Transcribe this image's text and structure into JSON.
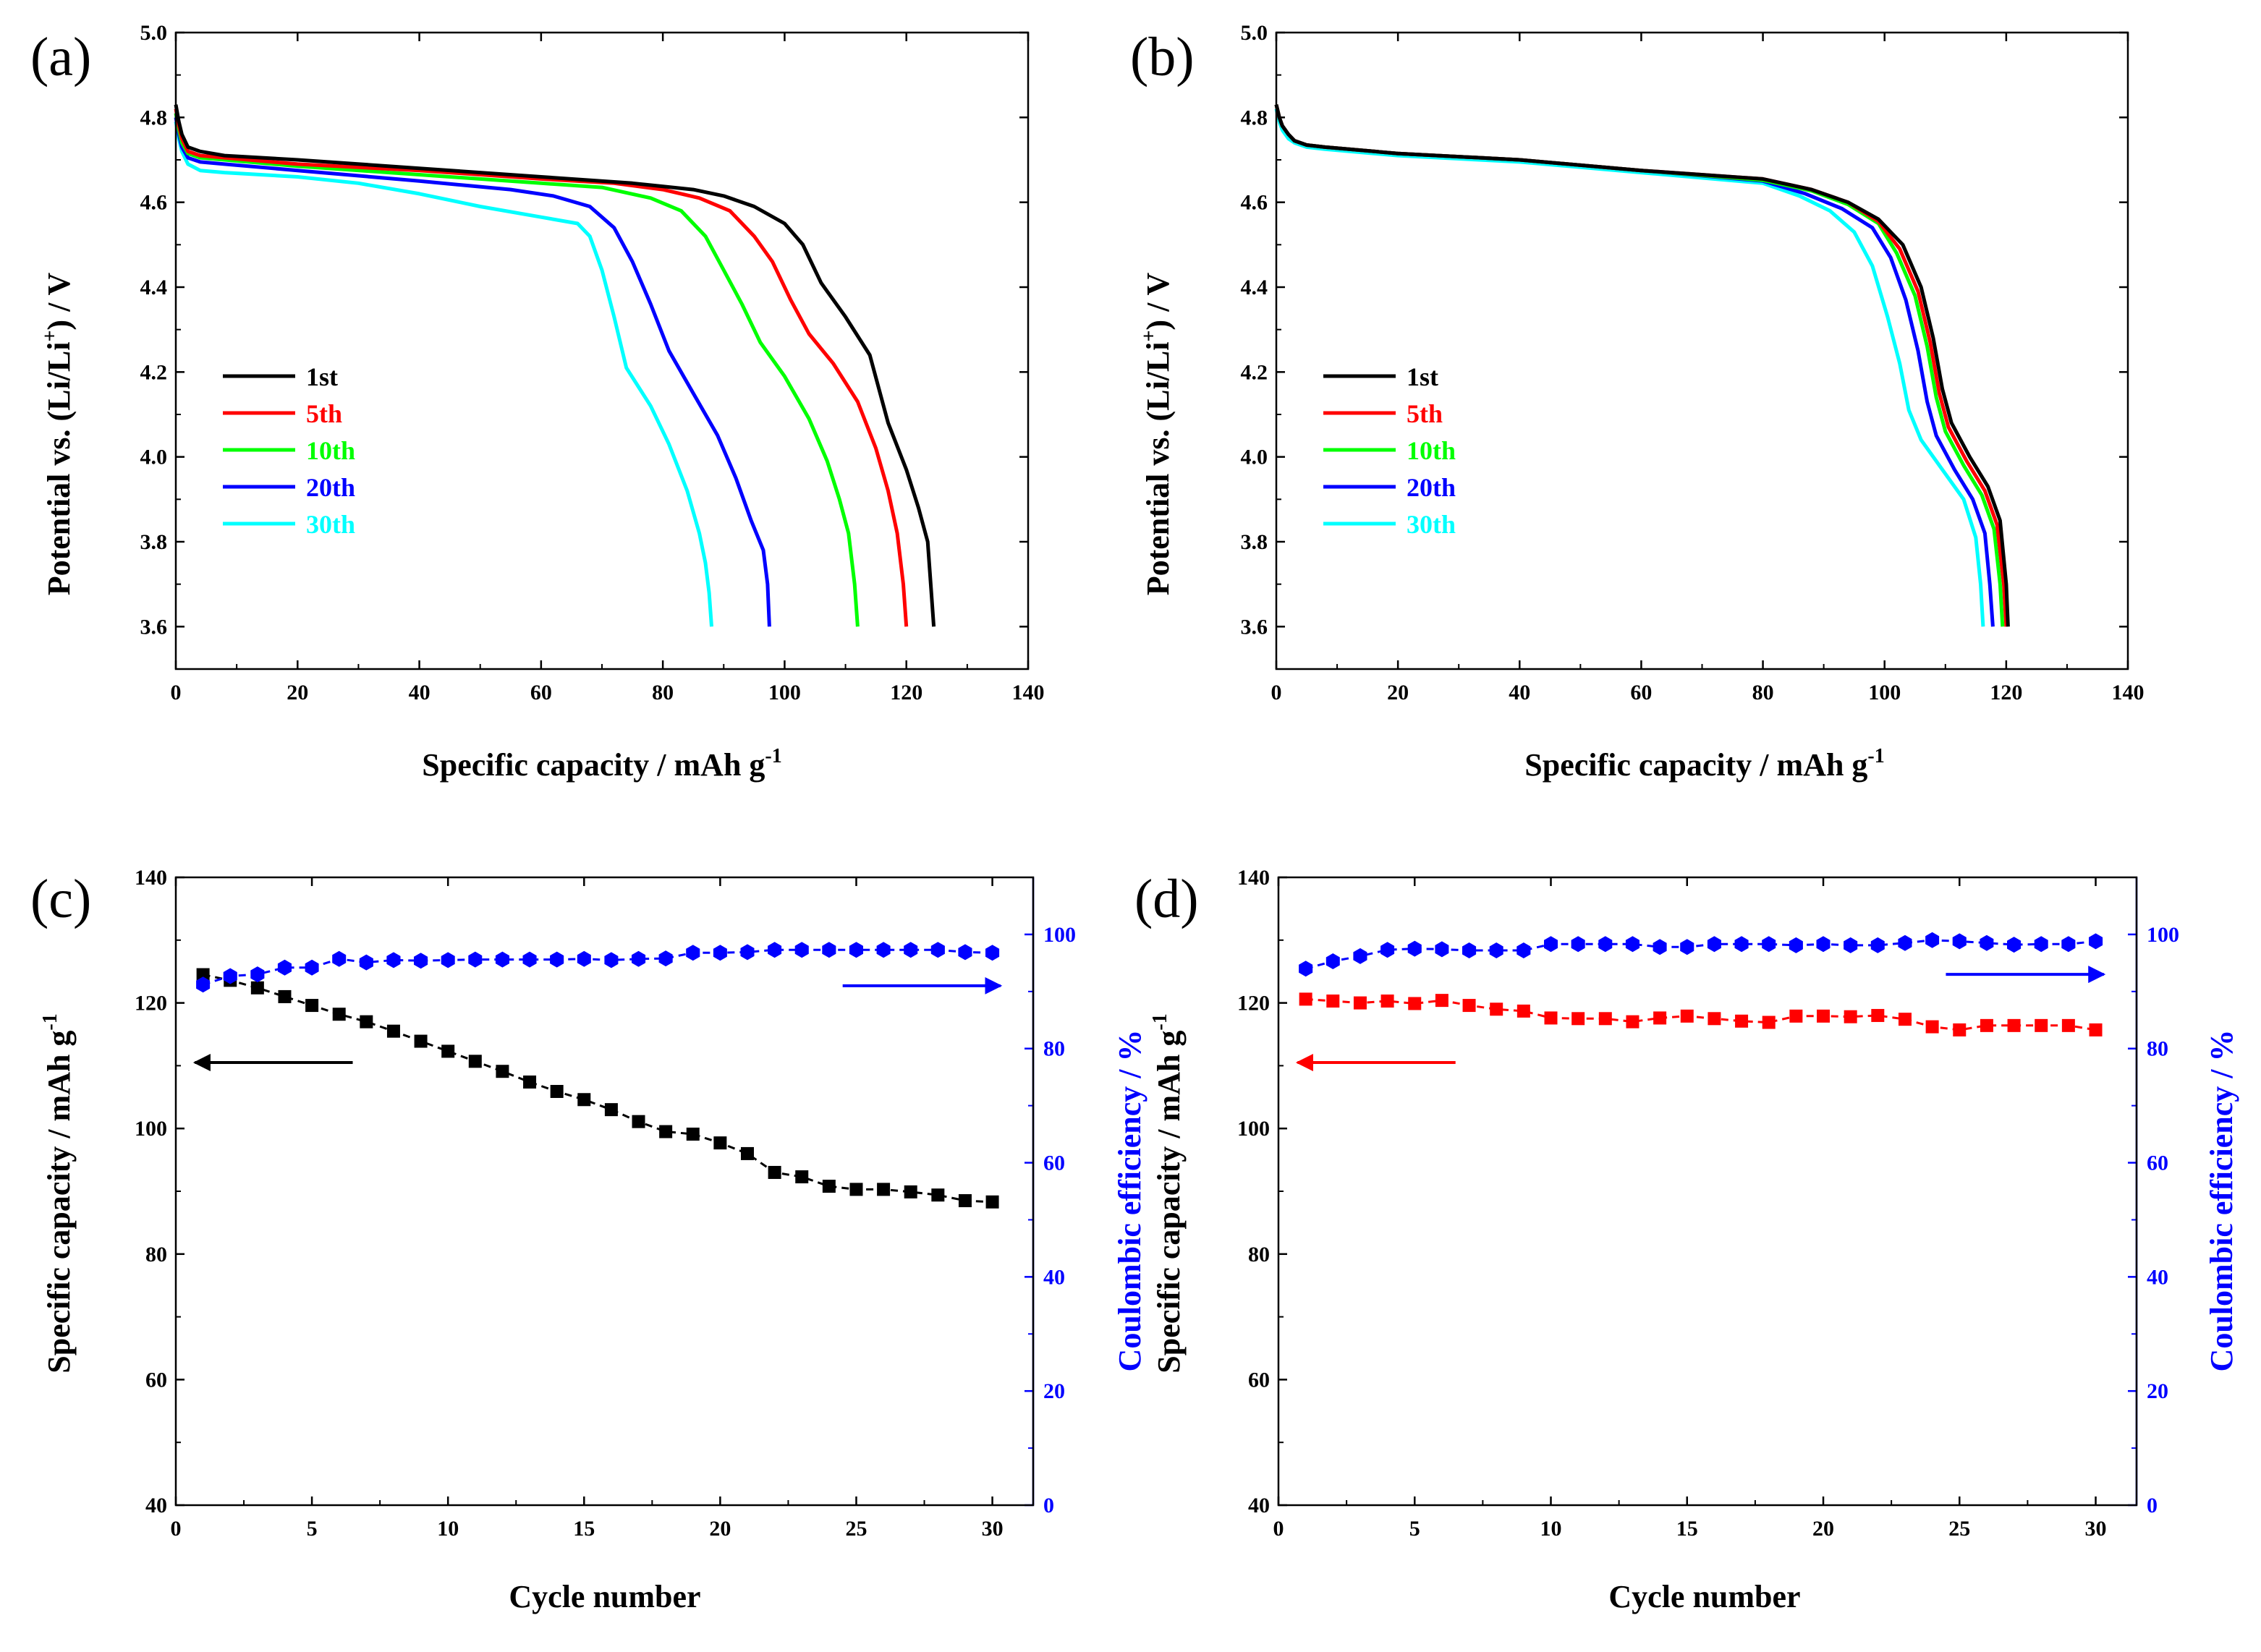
{
  "chart_data": [
    {
      "id": "a",
      "panel_label": "(a)",
      "type": "line",
      "xlabel": "Specific capacity / mAh g",
      "xlabel_sup": "-1",
      "ylabel": "Potential vs. (Li/Li",
      "ylabel_sup": "+",
      "ylabel_tail": ") / V",
      "xlim": [
        0,
        140
      ],
      "ylim": [
        3.5,
        5.0
      ],
      "xticks": [
        0,
        20,
        40,
        60,
        80,
        100,
        120,
        140
      ],
      "yticks": [
        3.6,
        3.8,
        4.0,
        4.2,
        4.4,
        4.6,
        4.8,
        5.0
      ],
      "legend_position": "lower-left",
      "series": [
        {
          "name": "1st",
          "color": "#000000",
          "x": [
            0,
            0.5,
            1,
            2,
            4,
            8,
            20,
            40,
            60,
            75,
            85,
            90,
            95,
            100,
            103,
            106,
            110,
            114,
            117,
            120,
            122,
            123.5,
            124,
            124.5
          ],
          "y": [
            4.83,
            4.79,
            4.76,
            4.73,
            4.72,
            4.71,
            4.7,
            4.68,
            4.66,
            4.645,
            4.63,
            4.615,
            4.59,
            4.55,
            4.5,
            4.41,
            4.33,
            4.24,
            4.08,
            3.97,
            3.88,
            3.8,
            3.7,
            3.6
          ]
        },
        {
          "name": "5th",
          "color": "#ff0000",
          "x": [
            0,
            0.5,
            1,
            2,
            4,
            8,
            20,
            40,
            60,
            72,
            80,
            86,
            91,
            95,
            98,
            101,
            104,
            108,
            112,
            115,
            117,
            118.5,
            119.5,
            120
          ],
          "y": [
            4.82,
            4.78,
            4.75,
            4.72,
            4.71,
            4.705,
            4.69,
            4.675,
            4.655,
            4.645,
            4.63,
            4.61,
            4.58,
            4.52,
            4.46,
            4.37,
            4.29,
            4.22,
            4.13,
            4.02,
            3.92,
            3.82,
            3.7,
            3.6
          ]
        },
        {
          "name": "10th",
          "color": "#00ff00",
          "x": [
            0,
            0.5,
            1,
            2,
            4,
            8,
            20,
            40,
            60,
            70,
            78,
            83,
            87,
            90,
            93,
            96,
            100,
            104,
            107,
            109,
            110.5,
            111.5,
            112
          ],
          "y": [
            4.81,
            4.77,
            4.74,
            4.715,
            4.705,
            4.7,
            4.685,
            4.665,
            4.645,
            4.635,
            4.61,
            4.58,
            4.52,
            4.44,
            4.36,
            4.27,
            4.19,
            4.09,
            3.99,
            3.9,
            3.82,
            3.7,
            3.6
          ]
        },
        {
          "name": "20th",
          "color": "#0000ff",
          "x": [
            0,
            0.5,
            1,
            2,
            4,
            8,
            20,
            40,
            55,
            62,
            68,
            72,
            75,
            78,
            81,
            85,
            89,
            92,
            94.5,
            96.5,
            97.2,
            97.5
          ],
          "y": [
            4.8,
            4.76,
            4.73,
            4.705,
            4.695,
            4.69,
            4.675,
            4.65,
            4.63,
            4.615,
            4.59,
            4.54,
            4.46,
            4.36,
            4.25,
            4.15,
            4.05,
            3.95,
            3.85,
            3.78,
            3.7,
            3.6
          ]
        },
        {
          "name": "30th",
          "color": "#00ffff",
          "x": [
            0,
            0.5,
            1,
            2,
            4,
            8,
            20,
            30,
            40,
            50,
            60,
            66,
            68,
            70,
            72,
            74,
            78,
            81,
            84,
            86,
            87,
            87.6,
            88
          ],
          "y": [
            4.79,
            4.75,
            4.72,
            4.69,
            4.675,
            4.67,
            4.66,
            4.645,
            4.62,
            4.59,
            4.565,
            4.55,
            4.52,
            4.44,
            4.33,
            4.21,
            4.12,
            4.03,
            3.92,
            3.82,
            3.75,
            3.68,
            3.6
          ]
        }
      ]
    },
    {
      "id": "b",
      "panel_label": "(b)",
      "type": "line",
      "xlabel": "Specific capacity / mAh g",
      "xlabel_sup": "-1",
      "ylabel": "Potential vs. (Li/Li",
      "ylabel_sup": "+",
      "ylabel_tail": ") / V",
      "xlim": [
        0,
        140
      ],
      "ylim": [
        3.5,
        5.0
      ],
      "xticks": [
        0,
        20,
        40,
        60,
        80,
        100,
        120,
        140
      ],
      "yticks": [
        3.6,
        3.8,
        4.0,
        4.2,
        4.4,
        4.6,
        4.8,
        5.0
      ],
      "legend_position": "lower-left",
      "series": [
        {
          "name": "1st",
          "color": "#000000",
          "x": [
            0,
            0.5,
            1,
            2,
            3,
            5,
            8,
            20,
            40,
            60,
            80,
            88,
            94,
            99,
            103,
            106,
            108,
            109.5,
            111,
            114,
            117,
            119,
            120,
            120.3
          ],
          "y": [
            4.83,
            4.8,
            4.78,
            4.76,
            4.745,
            4.735,
            4.73,
            4.715,
            4.7,
            4.675,
            4.655,
            4.63,
            4.6,
            4.56,
            4.5,
            4.4,
            4.28,
            4.16,
            4.08,
            4.0,
            3.93,
            3.85,
            3.7,
            3.6
          ]
        },
        {
          "name": "5th",
          "color": "#ff0000",
          "x": [
            0,
            0.5,
            1,
            2,
            3,
            5,
            8,
            20,
            40,
            60,
            80,
            88,
            94,
            99,
            102.5,
            105.5,
            107.5,
            109,
            110.5,
            113.5,
            116.5,
            118.5,
            119.6,
            120
          ],
          "y": [
            4.83,
            4.8,
            4.78,
            4.76,
            4.745,
            4.735,
            4.73,
            4.715,
            4.7,
            4.675,
            4.655,
            4.63,
            4.6,
            4.555,
            4.49,
            4.39,
            4.27,
            4.15,
            4.07,
            3.99,
            3.92,
            3.84,
            3.7,
            3.6
          ]
        },
        {
          "name": "10th",
          "color": "#00ff00",
          "x": [
            0,
            0.5,
            1,
            2,
            3,
            5,
            8,
            20,
            40,
            60,
            80,
            88,
            94,
            99,
            102,
            105,
            107,
            108.5,
            110,
            113,
            116,
            118,
            119,
            119.4
          ],
          "y": [
            4.83,
            4.8,
            4.78,
            4.76,
            4.745,
            4.735,
            4.73,
            4.715,
            4.7,
            4.675,
            4.652,
            4.627,
            4.595,
            4.55,
            4.48,
            4.38,
            4.26,
            4.14,
            4.06,
            3.98,
            3.91,
            3.83,
            3.7,
            3.6
          ]
        },
        {
          "name": "20th",
          "color": "#0000ff",
          "x": [
            0,
            0.5,
            1,
            2,
            3,
            5,
            8,
            20,
            40,
            60,
            80,
            87,
            93,
            98,
            101,
            103.5,
            105.5,
            107,
            108.5,
            111.5,
            114.5,
            116.5,
            117.3,
            117.8
          ],
          "y": [
            4.83,
            4.8,
            4.78,
            4.76,
            4.745,
            4.735,
            4.73,
            4.715,
            4.7,
            4.675,
            4.65,
            4.62,
            4.585,
            4.54,
            4.47,
            4.37,
            4.25,
            4.13,
            4.05,
            3.97,
            3.9,
            3.82,
            3.7,
            3.6
          ]
        },
        {
          "name": "30th",
          "color": "#00ffff",
          "x": [
            0,
            0.5,
            1,
            2,
            3,
            5,
            8,
            20,
            40,
            60,
            80,
            86,
            91,
            95,
            98,
            100.5,
            102.5,
            104,
            106,
            109.5,
            113,
            115,
            115.8,
            116.2
          ],
          "y": [
            4.82,
            4.79,
            4.77,
            4.75,
            4.74,
            4.73,
            4.725,
            4.71,
            4.695,
            4.67,
            4.645,
            4.615,
            4.58,
            4.53,
            4.45,
            4.33,
            4.22,
            4.11,
            4.04,
            3.97,
            3.9,
            3.81,
            3.7,
            3.6
          ]
        }
      ]
    },
    {
      "id": "c",
      "panel_label": "(c)",
      "type": "scatter",
      "xlabel": "Cycle number",
      "ylabel": "Specific capacity / mAh g",
      "ylabel_sup": "-1",
      "y2label": "Coulombic efficiency / %",
      "xlim": [
        0,
        31.5
      ],
      "ylim": [
        40,
        140
      ],
      "y2lim": [
        0,
        110
      ],
      "xticks": [
        0,
        5,
        10,
        15,
        20,
        25,
        30
      ],
      "yticks": [
        40,
        60,
        80,
        100,
        120,
        140
      ],
      "y2ticks": [
        0,
        20,
        40,
        60,
        80,
        100
      ],
      "series": [
        {
          "name": "Specific capacity",
          "axis": "left",
          "color": "#000000",
          "marker": "square",
          "x": [
            1,
            2,
            3,
            4,
            5,
            6,
            7,
            8,
            9,
            10,
            11,
            12,
            13,
            14,
            15,
            16,
            17,
            18,
            19,
            20,
            21,
            22,
            23,
            24,
            25,
            26,
            27,
            28,
            29,
            30
          ],
          "values": [
            124.5,
            123.6,
            122.4,
            121.0,
            119.6,
            118.2,
            117.0,
            115.5,
            113.9,
            112.3,
            110.7,
            109.1,
            107.4,
            105.9,
            104.6,
            103.0,
            101.1,
            99.5,
            99.1,
            97.7,
            96.0,
            93.0,
            92.3,
            90.8,
            90.3,
            90.3,
            89.9,
            89.4,
            88.5,
            88.3
          ]
        },
        {
          "name": "Coulombic efficiency",
          "axis": "right",
          "color": "#0000ff",
          "marker": "hexagon",
          "x": [
            1,
            2,
            3,
            4,
            5,
            6,
            7,
            8,
            9,
            10,
            11,
            12,
            13,
            14,
            15,
            16,
            17,
            18,
            19,
            20,
            21,
            22,
            23,
            24,
            25,
            26,
            27,
            28,
            29,
            30
          ],
          "values": [
            91.2,
            92.7,
            93.0,
            94.2,
            94.2,
            95.7,
            95.1,
            95.5,
            95.4,
            95.5,
            95.6,
            95.6,
            95.6,
            95.6,
            95.7,
            95.5,
            95.7,
            95.8,
            96.8,
            96.8,
            96.9,
            97.3,
            97.3,
            97.3,
            97.3,
            97.3,
            97.3,
            97.3,
            96.9,
            96.8
          ]
        }
      ],
      "arrows": [
        {
          "direction": "left",
          "color": "#000000",
          "x_from": 6.5,
          "x_to": 0.7,
          "y": 110.5
        },
        {
          "direction": "right",
          "color": "#0000ff",
          "x_from": 24.5,
          "x_to": 30.3,
          "y2": 91
        }
      ]
    },
    {
      "id": "d",
      "panel_label": "(d)",
      "type": "scatter",
      "xlabel": "Cycle number",
      "ylabel": "Specific capacity / mAh g",
      "ylabel_sup": "-1",
      "y2label": "Coulombic efficiency / %",
      "xlim": [
        0,
        31.5
      ],
      "ylim": [
        40,
        140
      ],
      "y2lim": [
        0,
        110
      ],
      "xticks": [
        0,
        5,
        10,
        15,
        20,
        25,
        30
      ],
      "yticks": [
        40,
        60,
        80,
        100,
        120,
        140
      ],
      "y2ticks": [
        0,
        20,
        40,
        60,
        80,
        100
      ],
      "series": [
        {
          "name": "Specific capacity",
          "axis": "left",
          "color": "#ff0000",
          "marker": "square",
          "x": [
            1,
            2,
            3,
            4,
            5,
            6,
            7,
            8,
            9,
            10,
            11,
            12,
            13,
            14,
            15,
            16,
            17,
            18,
            19,
            20,
            21,
            22,
            23,
            24,
            25,
            26,
            27,
            28,
            29,
            30
          ],
          "values": [
            120.6,
            120.3,
            120.0,
            120.3,
            119.9,
            120.4,
            119.6,
            119.0,
            118.7,
            117.6,
            117.5,
            117.5,
            117.0,
            117.6,
            117.9,
            117.5,
            117.1,
            116.9,
            117.9,
            117.9,
            117.8,
            118.0,
            117.4,
            116.2,
            115.7,
            116.4,
            116.4,
            116.4,
            116.4,
            115.7
          ]
        },
        {
          "name": "Coulombic efficiency",
          "axis": "right",
          "color": "#0000ff",
          "marker": "hexagon",
          "x": [
            1,
            2,
            3,
            4,
            5,
            6,
            7,
            8,
            9,
            10,
            11,
            12,
            13,
            14,
            15,
            16,
            17,
            18,
            19,
            20,
            21,
            22,
            23,
            24,
            25,
            26,
            27,
            28,
            29,
            30
          ],
          "values": [
            94.0,
            95.3,
            96.2,
            97.3,
            97.5,
            97.4,
            97.2,
            97.2,
            97.2,
            98.3,
            98.3,
            98.3,
            98.3,
            97.8,
            97.8,
            98.3,
            98.3,
            98.3,
            98.1,
            98.3,
            98.1,
            98.1,
            98.5,
            99.0,
            98.8,
            98.5,
            98.2,
            98.3,
            98.3,
            98.8
          ]
        }
      ],
      "arrows": [
        {
          "direction": "left",
          "color": "#ff0000",
          "x_from": 6.5,
          "x_to": 0.7,
          "y": 110.5
        },
        {
          "direction": "right",
          "color": "#0000ff",
          "x_from": 24.5,
          "x_to": 30.3,
          "y2": 93
        }
      ]
    }
  ]
}
